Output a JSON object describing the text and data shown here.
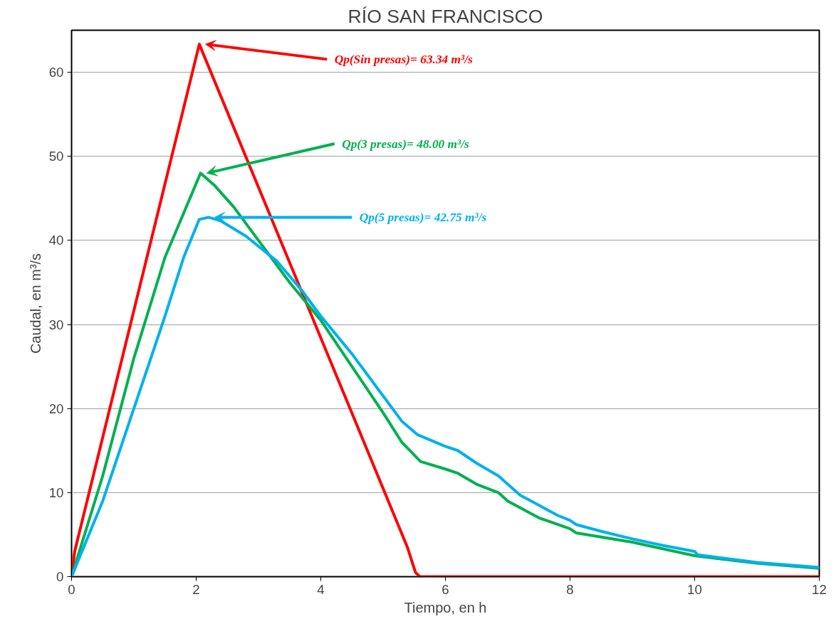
{
  "chart_data": {
    "type": "line",
    "title": "RÍO SAN FRANCISCO",
    "xlabel": "Tiempo, en h",
    "ylabel": "Caudal, en m³/s",
    "xlim": [
      0,
      12
    ],
    "ylim": [
      0,
      65
    ],
    "xticks": [
      0,
      2,
      4,
      6,
      8,
      10,
      12
    ],
    "yticks": [
      0,
      10,
      20,
      30,
      40,
      50,
      60
    ],
    "grid": "y",
    "marker": "none",
    "line_style": "solid",
    "series": [
      {
        "color": "#ff0000",
        "x": [
          0,
          0.05,
          2.05,
          5.39,
          5.52,
          5.59,
          6,
          8,
          10,
          12
        ],
        "values": [
          0,
          3,
          63.34,
          3.5,
          0.5,
          0,
          0,
          0,
          0,
          0
        ]
      },
      {
        "color": "#00b050",
        "x": [
          0,
          0.5,
          1,
          1.5,
          2.07,
          2.3,
          2.6,
          3,
          3.5,
          4,
          4.5,
          5,
          5.3,
          5.6,
          6,
          6.2,
          6.5,
          6.85,
          7,
          7.5,
          8,
          8.1,
          9,
          10,
          11,
          12
        ],
        "values": [
          0,
          12,
          26,
          38,
          48,
          46.5,
          44,
          40,
          35,
          30.5,
          25,
          19.5,
          16,
          13.7,
          12.8,
          12.3,
          11,
          10,
          9,
          7,
          5.7,
          5.2,
          4.1,
          2.5,
          1.6,
          1.0
        ]
      },
      {
        "color": "#00b0f0",
        "x": [
          0,
          0.5,
          1,
          1.5,
          1.8,
          2.05,
          2.2,
          2.4,
          2.8,
          3.3,
          3.7,
          4,
          4.5,
          5,
          5.3,
          5.55,
          6,
          6.2,
          6.5,
          6.85,
          7,
          7.2,
          7.5,
          7.8,
          8,
          8.1,
          8.5,
          9,
          9.5,
          10,
          10.05,
          11,
          12
        ],
        "values": [
          0,
          9,
          20,
          31,
          38,
          42.5,
          42.75,
          42.3,
          40.5,
          37.5,
          34,
          31,
          26.5,
          21.5,
          18.5,
          16.9,
          15.5,
          15,
          13.5,
          12,
          11,
          9.7,
          8.5,
          7.3,
          6.7,
          6.2,
          5.4,
          4.5,
          3.7,
          3,
          2.6,
          1.7,
          1.1
        ]
      }
    ],
    "annotations": [
      {
        "text": "Qp(Sin presas)= 63.34 m³/s",
        "x": 2.05,
        "y": 63.34
      },
      {
        "text": "Qp(3 presas)= 48.00 m³/s",
        "x": 2.07,
        "y": 48
      },
      {
        "text": "Qp(5 presas)= 42.75 m³/s",
        "x": 2.2,
        "y": 42.75
      }
    ]
  }
}
